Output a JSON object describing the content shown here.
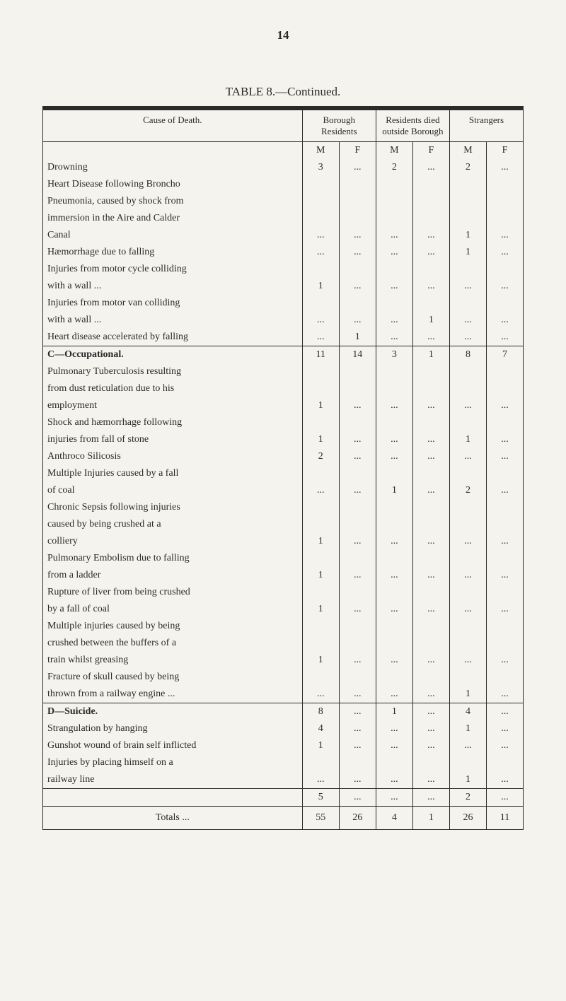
{
  "page_number": "14",
  "table_title": "TABLE 8.—Continued.",
  "headers": {
    "cause": "Cause of Death.",
    "borough": "Borough Residents",
    "died_outside": "Residents died outside Borough",
    "strangers": "Strangers",
    "M": "M",
    "F": "F"
  },
  "dots": "...",
  "sections": {
    "first": {
      "rows": [
        {
          "label": "Drowning",
          "vals": [
            "3",
            "...",
            "2",
            "...",
            "2",
            "..."
          ]
        },
        {
          "label": "Heart Disease following Broncho",
          "vals": [
            "",
            "",
            "",
            "",
            "",
            ""
          ]
        },
        {
          "label": "Pneumonia, caused by shock from",
          "indent": 1,
          "vals": [
            "",
            "",
            "",
            "",
            "",
            ""
          ]
        },
        {
          "label": "immersion in the Aire and Calder",
          "indent": 1,
          "vals": [
            "",
            "",
            "",
            "",
            "",
            ""
          ]
        },
        {
          "label": "Canal",
          "indent": 1,
          "vals": [
            "...",
            "...",
            "...",
            "...",
            "1",
            "..."
          ]
        },
        {
          "label": "Hæmorrhage due to falling",
          "vals": [
            "...",
            "...",
            "...",
            "...",
            "1",
            "..."
          ]
        },
        {
          "label": "Injuries from motor cycle colliding",
          "vals": [
            "",
            "",
            "",
            "",
            "",
            ""
          ]
        },
        {
          "label": "with a wall ...",
          "indent": 1,
          "vals": [
            "1",
            "...",
            "...",
            "...",
            "...",
            "..."
          ]
        },
        {
          "label": "Injuries from motor van colliding",
          "vals": [
            "",
            "",
            "",
            "",
            "",
            ""
          ]
        },
        {
          "label": "with a wall ...",
          "indent": 1,
          "vals": [
            "...",
            "...",
            "...",
            "1",
            "...",
            "..."
          ]
        },
        {
          "label": "Heart disease accelerated by falling",
          "vals": [
            "...",
            "1",
            "...",
            "...",
            "...",
            "..."
          ]
        }
      ]
    },
    "C": {
      "header_label": "C—Occupational.",
      "header_vals": [
        "11",
        "14",
        "3",
        "1",
        "8",
        "7"
      ],
      "rows": [
        {
          "label": "Pulmonary Tuberculosis resulting",
          "vals": [
            "",
            "",
            "",
            "",
            "",
            ""
          ]
        },
        {
          "label": "from dust reticulation due to his",
          "indent": 1,
          "vals": [
            "",
            "",
            "",
            "",
            "",
            ""
          ]
        },
        {
          "label": "employment",
          "indent": 1,
          "vals": [
            "1",
            "...",
            "...",
            "...",
            "...",
            "..."
          ]
        },
        {
          "label": "Shock and hæmorrhage following",
          "vals": [
            "",
            "",
            "",
            "",
            "",
            ""
          ]
        },
        {
          "label": "injuries from fall of stone",
          "indent": 1,
          "vals": [
            "1",
            "...",
            "...",
            "...",
            "1",
            "..."
          ]
        },
        {
          "label": "Anthroco Silicosis",
          "vals": [
            "2",
            "...",
            "...",
            "...",
            "...",
            "..."
          ]
        },
        {
          "label": "Multiple Injuries caused by a fall",
          "vals": [
            "",
            "",
            "",
            "",
            "",
            ""
          ]
        },
        {
          "label": "of coal",
          "indent": 1,
          "vals": [
            "...",
            "...",
            "1",
            "...",
            "2",
            "..."
          ]
        },
        {
          "label": "Chronic Sepsis following injuries",
          "vals": [
            "",
            "",
            "",
            "",
            "",
            ""
          ]
        },
        {
          "label": "caused by being crushed at a",
          "indent": 1,
          "vals": [
            "",
            "",
            "",
            "",
            "",
            ""
          ]
        },
        {
          "label": "colliery",
          "indent": 1,
          "vals": [
            "1",
            "...",
            "...",
            "...",
            "...",
            "..."
          ]
        },
        {
          "label": "Pulmonary Embolism due to falling",
          "vals": [
            "",
            "",
            "",
            "",
            "",
            ""
          ]
        },
        {
          "label": "from a ladder",
          "indent": 1,
          "vals": [
            "1",
            "...",
            "...",
            "...",
            "...",
            "..."
          ]
        },
        {
          "label": "Rupture of liver from being crushed",
          "vals": [
            "",
            "",
            "",
            "",
            "",
            ""
          ]
        },
        {
          "label": "by a fall of coal",
          "indent": 1,
          "vals": [
            "1",
            "...",
            "...",
            "...",
            "...",
            "..."
          ]
        },
        {
          "label": "Multiple injuries caused by being",
          "vals": [
            "",
            "",
            "",
            "",
            "",
            ""
          ]
        },
        {
          "label": "crushed between the buffers of a",
          "indent": 1,
          "vals": [
            "",
            "",
            "",
            "",
            "",
            ""
          ]
        },
        {
          "label": "train whilst greasing",
          "indent": 1,
          "vals": [
            "1",
            "...",
            "...",
            "...",
            "...",
            "..."
          ]
        },
        {
          "label": "Fracture of skull caused by being",
          "vals": [
            "",
            "",
            "",
            "",
            "",
            ""
          ]
        },
        {
          "label": "thrown from a railway engine ...",
          "indent": 1,
          "vals": [
            "...",
            "...",
            "...",
            "...",
            "1",
            "..."
          ]
        }
      ]
    },
    "D": {
      "header_label": "D—Suicide.",
      "header_vals": [
        "8",
        "...",
        "1",
        "...",
        "4",
        "..."
      ],
      "rows": [
        {
          "label": "Strangulation by hanging",
          "vals": [
            "4",
            "...",
            "...",
            "...",
            "1",
            "..."
          ]
        },
        {
          "label": "Gunshot wound of brain self inflicted",
          "vals": [
            "1",
            "...",
            "...",
            "...",
            "...",
            "..."
          ]
        },
        {
          "label": "Injuries by placing himself on a",
          "vals": [
            "",
            "",
            "",
            "",
            "",
            ""
          ]
        },
        {
          "label": "railway line",
          "indent": 1,
          "vals": [
            "...",
            "...",
            "...",
            "...",
            "1",
            "..."
          ]
        }
      ],
      "subtotal": [
        "5",
        "...",
        "...",
        "...",
        "2",
        "..."
      ]
    }
  },
  "totals": {
    "label": "Totals ...",
    "vals": [
      "55",
      "26",
      "4",
      "1",
      "26",
      "11"
    ]
  }
}
